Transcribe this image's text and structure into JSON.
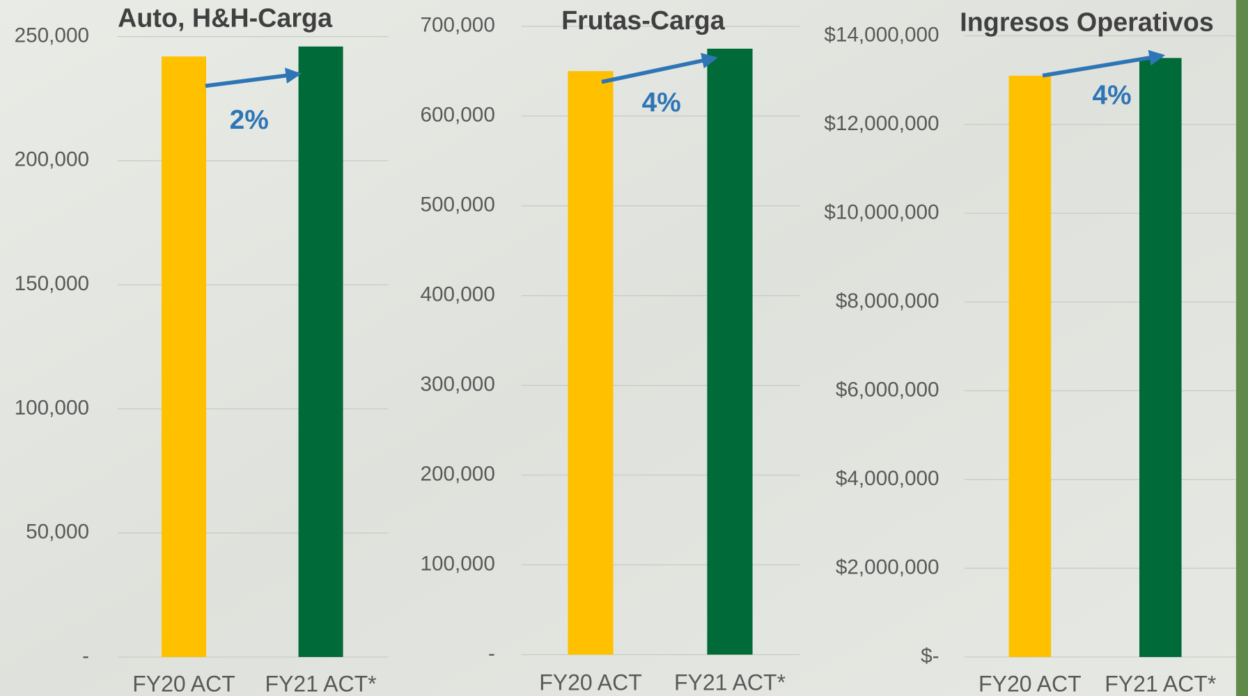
{
  "chart_data": [
    {
      "type": "bar",
      "title": "Auto, H&H-Carga",
      "categories": [
        "FY20 ACT",
        "FY21 ACT*"
      ],
      "values": [
        242000,
        246000
      ],
      "colors": [
        "#FFC000",
        "#006A38"
      ],
      "annotation": "2%",
      "ylim": [
        0,
        250000
      ],
      "yticks": [
        {
          "value": 0,
          "label": "-"
        },
        {
          "value": 50000,
          "label": "50,000"
        },
        {
          "value": 100000,
          "label": "100,000"
        },
        {
          "value": 150000,
          "label": "150,000"
        },
        {
          "value": 200000,
          "label": "200,000"
        },
        {
          "value": 250000,
          "label": "250,000"
        }
      ],
      "grid": true
    },
    {
      "type": "bar",
      "title": "Frutas-Carga",
      "categories": [
        "FY20 ACT",
        "FY21 ACT*"
      ],
      "values": [
        650000,
        675000
      ],
      "colors": [
        "#FFC000",
        "#006A38"
      ],
      "annotation": "4%",
      "ylim": [
        0,
        700000
      ],
      "yticks": [
        {
          "value": 0,
          "label": "-"
        },
        {
          "value": 100000,
          "label": "100,000"
        },
        {
          "value": 200000,
          "label": "200,000"
        },
        {
          "value": 300000,
          "label": "300,000"
        },
        {
          "value": 400000,
          "label": "400,000"
        },
        {
          "value": 500000,
          "label": "500,000"
        },
        {
          "value": 600000,
          "label": "600,000"
        },
        {
          "value": 700000,
          "label": "700,000"
        }
      ],
      "grid": true
    },
    {
      "type": "bar",
      "title": "Ingresos Operativos",
      "categories": [
        "FY20 ACT",
        "FY21 ACT*"
      ],
      "values": [
        13100000,
        13500000
      ],
      "colors": [
        "#FFC000",
        "#006A38"
      ],
      "annotation": "4%",
      "ylim": [
        0,
        14000000
      ],
      "yticks": [
        {
          "value": 0,
          "label": "$-"
        },
        {
          "value": 2000000,
          "label": "$2,000,000"
        },
        {
          "value": 4000000,
          "label": "$4,000,000"
        },
        {
          "value": 6000000,
          "label": "$6,000,000"
        },
        {
          "value": 8000000,
          "label": "$8,000,000"
        },
        {
          "value": 10000000,
          "label": "$10,000,000"
        },
        {
          "value": 12000000,
          "label": "$12,000,000"
        },
        {
          "value": 14000000,
          "label": "$14,000,000"
        }
      ],
      "grid": true
    }
  ]
}
